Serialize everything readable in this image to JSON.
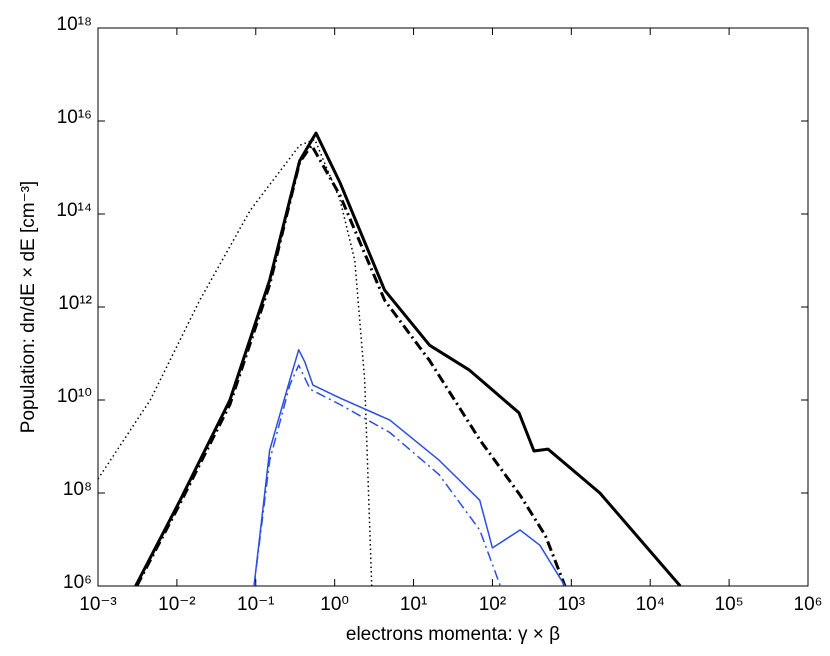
{
  "chart_data": {
    "type": "line",
    "xlabel": "electrons momenta: γ × β",
    "ylabel": "Population: dn/dE × dE [cm⁻³]",
    "xscale": "log",
    "yscale": "log",
    "grid": false,
    "xlim": [
      0.001,
      1000000
    ],
    "ylim": [
      1000000,
      1000000000000000000
    ],
    "xticks": [
      {
        "value": 0.001,
        "label": "10⁻³"
      },
      {
        "value": 0.01,
        "label": "10⁻²"
      },
      {
        "value": 0.1,
        "label": "10⁻¹"
      },
      {
        "value": 1,
        "label": "10⁰"
      },
      {
        "value": 10,
        "label": "10¹"
      },
      {
        "value": 100,
        "label": "10²"
      },
      {
        "value": 1000,
        "label": "10³"
      },
      {
        "value": 10000,
        "label": "10⁴"
      },
      {
        "value": 100000,
        "label": "10⁵"
      },
      {
        "value": 1000000,
        "label": "10⁶"
      }
    ],
    "yticks": [
      {
        "value": 1000000,
        "label": "10⁶"
      },
      {
        "value": 100000000,
        "label": "10⁸"
      },
      {
        "value": 10000000000,
        "label": "10¹⁰"
      },
      {
        "value": 1000000000000,
        "label": "10¹²"
      },
      {
        "value": 100000000000000,
        "label": "10¹⁴"
      },
      {
        "value": 10000000000000000,
        "label": "10¹⁶"
      },
      {
        "value": 1000000000000000000,
        "label": "10¹⁸"
      }
    ],
    "series": [
      {
        "color": "#000000",
        "style": "solid",
        "width": 3,
        "x": [
          0.003,
          0.011,
          0.047,
          0.15,
          0.36,
          0.58,
          1.17,
          4.3,
          16,
          51,
          217,
          336,
          505,
          2300,
          24000
        ],
        "values": [
          1000000,
          70000000,
          10000000000,
          3800000000000,
          1400000000000000,
          5500000000000000,
          470000000000000,
          2300000000000,
          150000000000,
          44000000000,
          5300000000,
          800000000,
          880000000,
          100000000,
          1000000
        ]
      },
      {
        "color": "#000000",
        "style": "dashdot",
        "width": 3,
        "x": [
          0.0031,
          0.011,
          0.047,
          0.15,
          0.36,
          0.51,
          1.17,
          4.3,
          16,
          69,
          224,
          470,
          830
        ],
        "values": [
          1000000,
          60000000,
          8000000000,
          3000000000000,
          1300000000000000,
          3000000000000000,
          250000000000000,
          1400000000000,
          70000000000,
          1400000000,
          90000000,
          12000000,
          1000000
        ]
      },
      {
        "color": "#000000",
        "style": "dotted",
        "width": 1.5,
        "x": [
          0.001,
          0.0046,
          0.0195,
          0.085,
          0.36,
          0.56,
          1.17,
          1.8,
          2.4,
          2.95
        ],
        "values": [
          200000000,
          10000000000,
          1400000000000,
          120000000000000,
          3000000000000000,
          4000000000000000,
          200000000000000,
          10000000000000,
          27000000000,
          1000000
        ]
      },
      {
        "color": "#2b4fe0",
        "style": "solid",
        "width": 1.5,
        "x": [
          0.095,
          0.15,
          0.27,
          0.35,
          0.42,
          0.53,
          1.17,
          5,
          21,
          69,
          100,
          224,
          400,
          830
        ],
        "values": [
          1000000,
          830000000,
          27000000000,
          120000000000,
          65000000000,
          21000000000,
          11000000000,
          3700000000,
          510000000,
          70000000,
          6600000,
          16000000,
          7500000,
          1000000
        ]
      },
      {
        "color": "#2b4fe0",
        "style": "dashdot",
        "width": 1.5,
        "x": [
          0.095,
          0.15,
          0.27,
          0.35,
          0.49,
          1.17,
          5,
          21,
          69,
          126
        ],
        "values": [
          1000000,
          500000000,
          21000000000,
          56000000000,
          17000000000,
          8000000000,
          2000000000,
          250000000,
          16000000,
          1000000
        ]
      }
    ]
  }
}
